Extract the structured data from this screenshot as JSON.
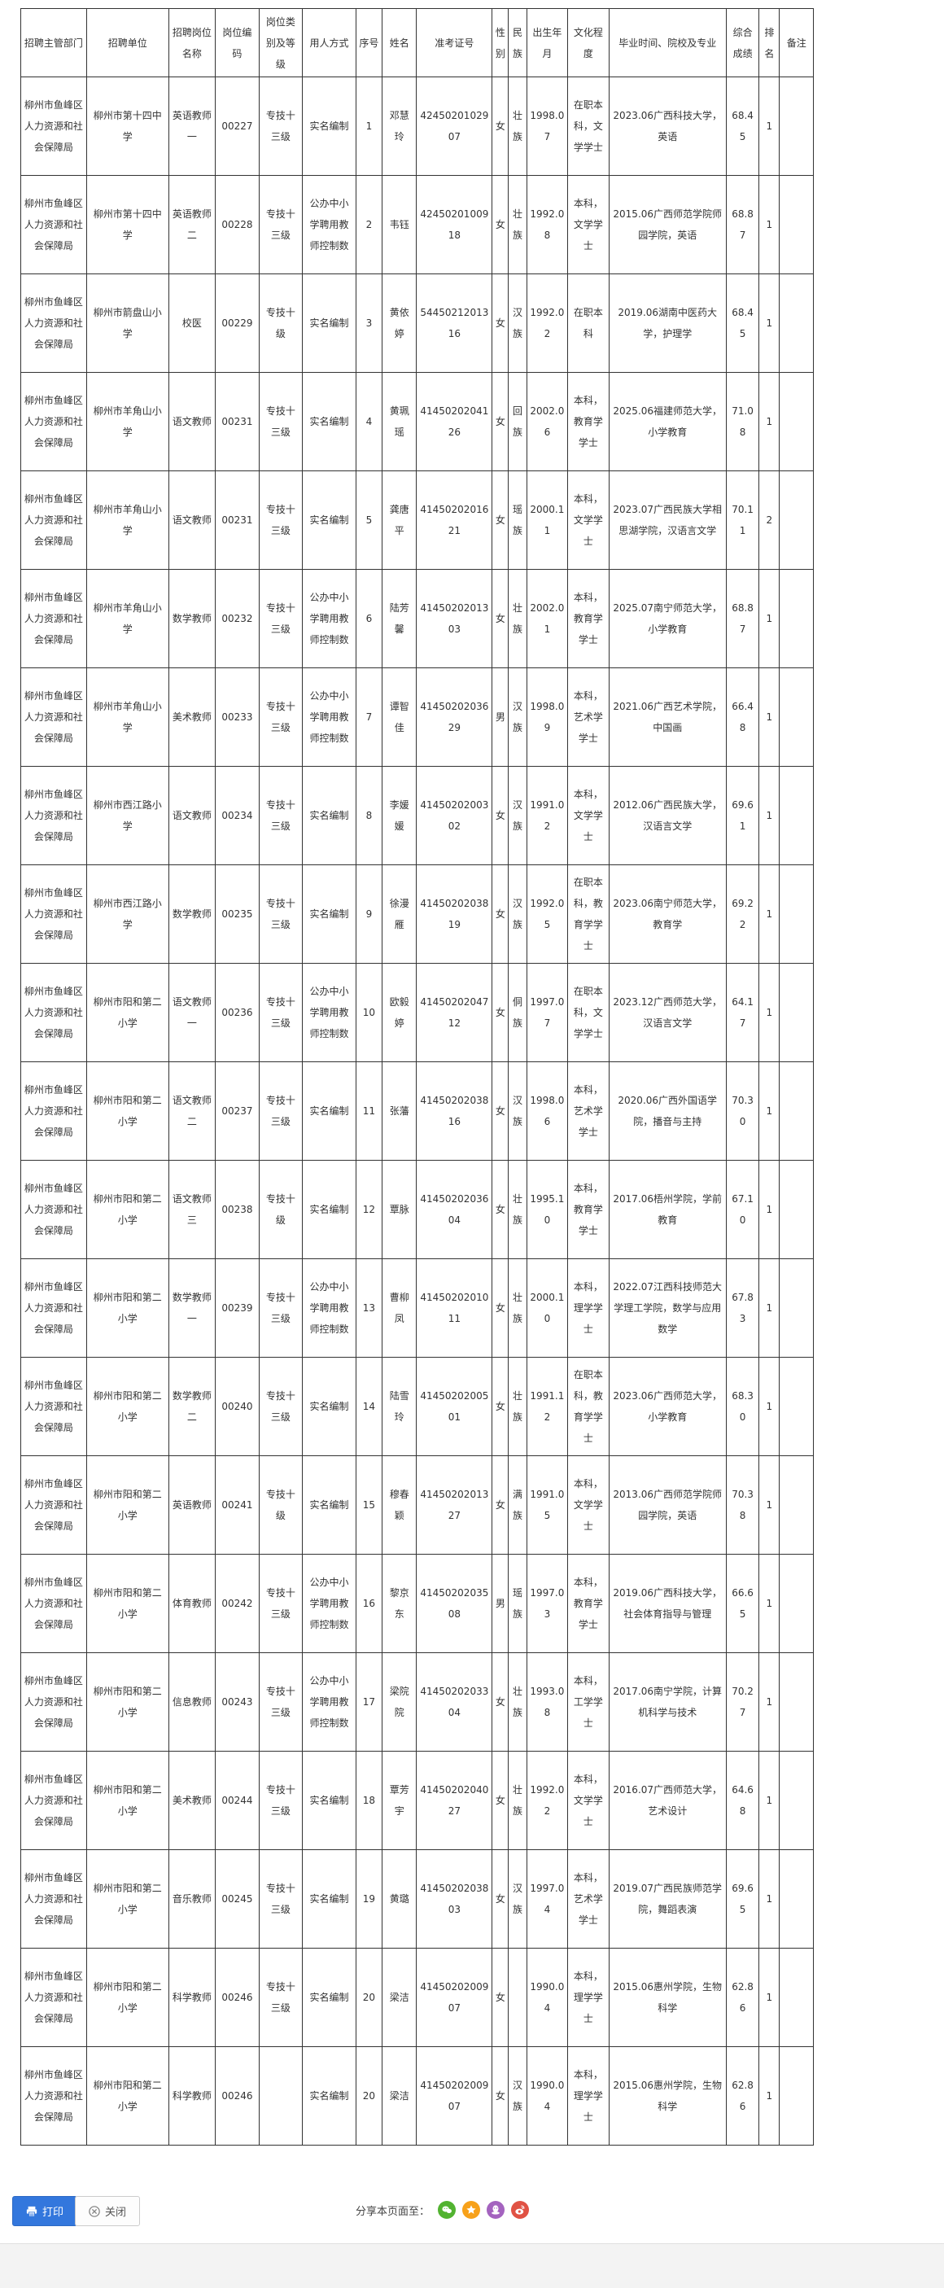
{
  "table": {
    "headers": [
      "招聘主管部门",
      "招聘单位",
      "招聘岗位名称",
      "岗位编码",
      "岗位类别及等级",
      "用人方式",
      "序号",
      "姓名",
      "准考证号",
      "性别",
      "民族",
      "出生年月",
      "文化程度",
      "毕业时间、院校及专业",
      "综合成绩",
      "排名",
      "备注"
    ],
    "rows": [
      [
        "柳州市鱼峰区人力资源和社会保障局",
        "柳州市第十四中学",
        "英语教师一",
        "00227",
        "专技十三级",
        "实名编制",
        "1",
        "邓慧玲",
        "4245020102907",
        "女",
        "壮族",
        "1998.07",
        "在职本科，文学学士",
        "2023.06广西科技大学，英语",
        "68.45",
        "1",
        ""
      ],
      [
        "柳州市鱼峰区人力资源和社会保障局",
        "柳州市第十四中学",
        "英语教师二",
        "00228",
        "专技十三级",
        "公办中小学聘用教师控制数",
        "2",
        "韦钰",
        "4245020100918",
        "女",
        "壮族",
        "1992.08",
        "本科，文学学士",
        "2015.06广西师范学院师园学院，英语",
        "68.87",
        "1",
        ""
      ],
      [
        "柳州市鱼峰区人力资源和社会保障局",
        "柳州市箭盘山小学",
        "校医",
        "00229",
        "专技十级",
        "实名编制",
        "3",
        "黄依婷",
        "5445021201316",
        "女",
        "汉族",
        "1992.02",
        "在职本科",
        "2019.06湖南中医药大学，护理学",
        "68.45",
        "1",
        ""
      ],
      [
        "柳州市鱼峰区人力资源和社会保障局",
        "柳州市羊角山小学",
        "语文教师",
        "00231",
        "专技十三级",
        "实名编制",
        "4",
        "黄珮瑶",
        "4145020204126",
        "女",
        "回族",
        "2002.06",
        "本科，教育学学士",
        "2025.06福建师范大学，小学教育",
        "71.08",
        "1",
        ""
      ],
      [
        "柳州市鱼峰区人力资源和社会保障局",
        "柳州市羊角山小学",
        "语文教师",
        "00231",
        "专技十三级",
        "实名编制",
        "5",
        "龚唐平",
        "4145020201621",
        "女",
        "瑶族",
        "2000.11",
        "本科，文学学士",
        "2023.07广西民族大学相思湖学院，汉语言文学",
        "70.11",
        "2",
        ""
      ],
      [
        "柳州市鱼峰区人力资源和社会保障局",
        "柳州市羊角山小学",
        "数学教师",
        "00232",
        "专技十三级",
        "公办中小学聘用教师控制数",
        "6",
        "陆芳馨",
        "4145020201303",
        "女",
        "壮族",
        "2002.01",
        "本科，教育学学士",
        "2025.07南宁师范大学，小学教育",
        "68.87",
        "1",
        ""
      ],
      [
        "柳州市鱼峰区人力资源和社会保障局",
        "柳州市羊角山小学",
        "美术教师",
        "00233",
        "专技十三级",
        "公办中小学聘用教师控制数",
        "7",
        "谭智佳",
        "4145020203629",
        "男",
        "汉族",
        "1998.09",
        "本科，艺术学学士",
        "2021.06广西艺术学院，中国画",
        "66.48",
        "1",
        ""
      ],
      [
        "柳州市鱼峰区人力资源和社会保障局",
        "柳州市西江路小学",
        "语文教师",
        "00234",
        "专技十三级",
        "实名编制",
        "8",
        "李媛媛",
        "4145020200302",
        "女",
        "汉族",
        "1991.02",
        "本科，文学学士",
        "2012.06广西民族大学，汉语言文学",
        "69.61",
        "1",
        ""
      ],
      [
        "柳州市鱼峰区人力资源和社会保障局",
        "柳州市西江路小学",
        "数学教师",
        "00235",
        "专技十三级",
        "实名编制",
        "9",
        "徐漫雁",
        "4145020203819",
        "女",
        "汉族",
        "1992.05",
        "在职本科，教育学学士",
        "2023.06南宁师范大学，教育学",
        "69.22",
        "1",
        ""
      ],
      [
        "柳州市鱼峰区人力资源和社会保障局",
        "柳州市阳和第二小学",
        "语文教师一",
        "00236",
        "专技十三级",
        "公办中小学聘用教师控制数",
        "10",
        "欧毅婷",
        "4145020204712",
        "女",
        "侗族",
        "1997.07",
        "在职本科，文学学士",
        "2023.12广西师范大学，汉语言文学",
        "64.17",
        "1",
        ""
      ],
      [
        "柳州市鱼峰区人力资源和社会保障局",
        "柳州市阳和第二小学",
        "语文教师二",
        "00237",
        "专技十三级",
        "实名编制",
        "11",
        "张藩",
        "4145020203816",
        "女",
        "汉族",
        "1998.06",
        "本科，艺术学学士",
        "2020.06广西外国语学院，播音与主持",
        "70.30",
        "1",
        ""
      ],
      [
        "柳州市鱼峰区人力资源和社会保障局",
        "柳州市阳和第二小学",
        "语文教师三",
        "00238",
        "专技十级",
        "实名编制",
        "12",
        "覃脉",
        "4145020203604",
        "女",
        "壮族",
        "1995.10",
        "本科，教育学学士",
        "2017.06梧州学院，学前教育",
        "67.10",
        "1",
        ""
      ],
      [
        "柳州市鱼峰区人力资源和社会保障局",
        "柳州市阳和第二小学",
        "数学教师一",
        "00239",
        "专技十三级",
        "公办中小学聘用教师控制数",
        "13",
        "曹柳凤",
        "4145020201011",
        "女",
        "壮族",
        "2000.10",
        "本科，理学学士",
        "2022.07江西科技师范大学理工学院，数学与应用数学",
        "67.83",
        "1",
        ""
      ],
      [
        "柳州市鱼峰区人力资源和社会保障局",
        "柳州市阳和第二小学",
        "数学教师二",
        "00240",
        "专技十三级",
        "实名编制",
        "14",
        "陆雪玲",
        "4145020200501",
        "女",
        "壮族",
        "1991.12",
        "在职本科，教育学学士",
        "2023.06广西师范大学，小学教育",
        "68.30",
        "1",
        ""
      ],
      [
        "柳州市鱼峰区人力资源和社会保障局",
        "柳州市阳和第二小学",
        "英语教师",
        "00241",
        "专技十级",
        "实名编制",
        "15",
        "穆春颖",
        "4145020201327",
        "女",
        "满族",
        "1991.05",
        "本科，文学学士",
        "2013.06广西师范学院师园学院，英语",
        "70.38",
        "1",
        ""
      ],
      [
        "柳州市鱼峰区人力资源和社会保障局",
        "柳州市阳和第二小学",
        "体育教师",
        "00242",
        "专技十三级",
        "公办中小学聘用教师控制数",
        "16",
        "黎京东",
        "4145020203508",
        "男",
        "瑶族",
        "1997.03",
        "本科，教育学学士",
        "2019.06广西科技大学，社会体育指导与管理",
        "66.65",
        "1",
        ""
      ],
      [
        "柳州市鱼峰区人力资源和社会保障局",
        "柳州市阳和第二小学",
        "信息教师",
        "00243",
        "专技十三级",
        "公办中小学聘用教师控制数",
        "17",
        "梁院院",
        "4145020203304",
        "女",
        "壮族",
        "1993.08",
        "本科，工学学士",
        "2017.06南宁学院，计算机科学与技术",
        "70.27",
        "1",
        ""
      ],
      [
        "柳州市鱼峰区人力资源和社会保障局",
        "柳州市阳和第二小学",
        "美术教师",
        "00244",
        "专技十三级",
        "实名编制",
        "18",
        "覃芳宇",
        "4145020204027",
        "女",
        "壮族",
        "1992.02",
        "本科，文学学士",
        "2016.07广西师范大学，艺术设计",
        "64.68",
        "1",
        ""
      ],
      [
        "柳州市鱼峰区人力资源和社会保障局",
        "柳州市阳和第二小学",
        "音乐教师",
        "00245",
        "专技十三级",
        "实名编制",
        "19",
        "黄璐",
        "4145020203803",
        "女",
        "汉族",
        "1997.04",
        "本科，艺术学学士",
        "2019.07广西民族师范学院，舞蹈表演",
        "69.65",
        "1",
        ""
      ],
      [
        "柳州市鱼峰区人力资源和社会保障局",
        "柳州市阳和第二小学",
        "科学教师",
        "00246",
        "专技十三级",
        "实名编制",
        "20",
        "梁洁",
        "4145020200907",
        "女",
        "",
        "1990.04",
        "本科，理学学士",
        "2015.06惠州学院，生物科学",
        "62.86",
        "1",
        ""
      ],
      [
        "柳州市鱼峰区人力资源和社会保障局",
        "柳州市阳和第二小学",
        "科学教师",
        "00246",
        "",
        "实名编制",
        "20",
        "梁洁",
        "4145020200907",
        "女",
        "汉族",
        "1990.04",
        "本科，理学学士",
        "2015.06惠州学院，生物科学",
        "62.86",
        "1",
        ""
      ]
    ]
  },
  "footer": {
    "print_label": "打印",
    "close_label": "关闭",
    "share_label": "分享本页面至：",
    "share_icons": [
      {
        "name": "wechat",
        "color": "#52b331"
      },
      {
        "name": "qzone",
        "color": "#f7a11a"
      },
      {
        "name": "qq",
        "color": "#a463bf"
      },
      {
        "name": "weibo",
        "color": "#e05244"
      }
    ]
  },
  "colors": {
    "print_button": "#3377dd",
    "table_border": "#333333",
    "page_background": "#f3f3f3"
  }
}
